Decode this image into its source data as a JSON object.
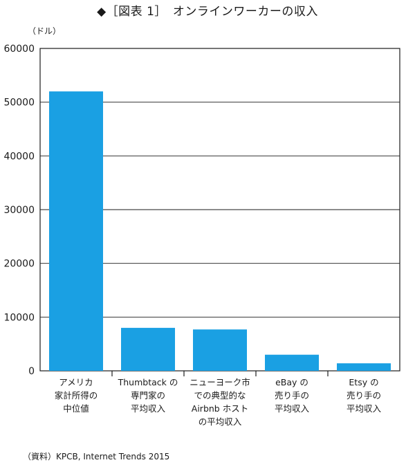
{
  "title": "◆［図表 1］　オンラインワーカーの収入",
  "unit_label": "（ドル）",
  "source": "（資料）KPCB, Internet Trends 2015",
  "colors": {
    "bar": "#1aa0e3",
    "axis": "#1a1a1a",
    "grid": "#1a1a1a"
  },
  "chart_data": {
    "type": "bar",
    "title": "◆［図表 1］　オンラインワーカーの収入",
    "ylabel": "（ドル）",
    "ylim": [
      0,
      60000
    ],
    "yticks": [
      "0",
      "10000",
      "20000",
      "30000",
      "40000",
      "50000",
      "60000"
    ],
    "grid": true,
    "categories": [
      [
        "アメリカ",
        "家計所得の",
        "中位値"
      ],
      [
        "Thumbtack の",
        "専門家の",
        "平均収入"
      ],
      [
        "ニューヨーク市",
        "での典型的な",
        "Airbnb ホスト",
        "の平均収入"
      ],
      [
        "eBay の",
        "売り手の",
        "平均収入"
      ],
      [
        "Etsy の",
        "売り手の",
        "平均収入"
      ]
    ],
    "values": [
      52000,
      8000,
      7700,
      3000,
      1400
    ]
  }
}
